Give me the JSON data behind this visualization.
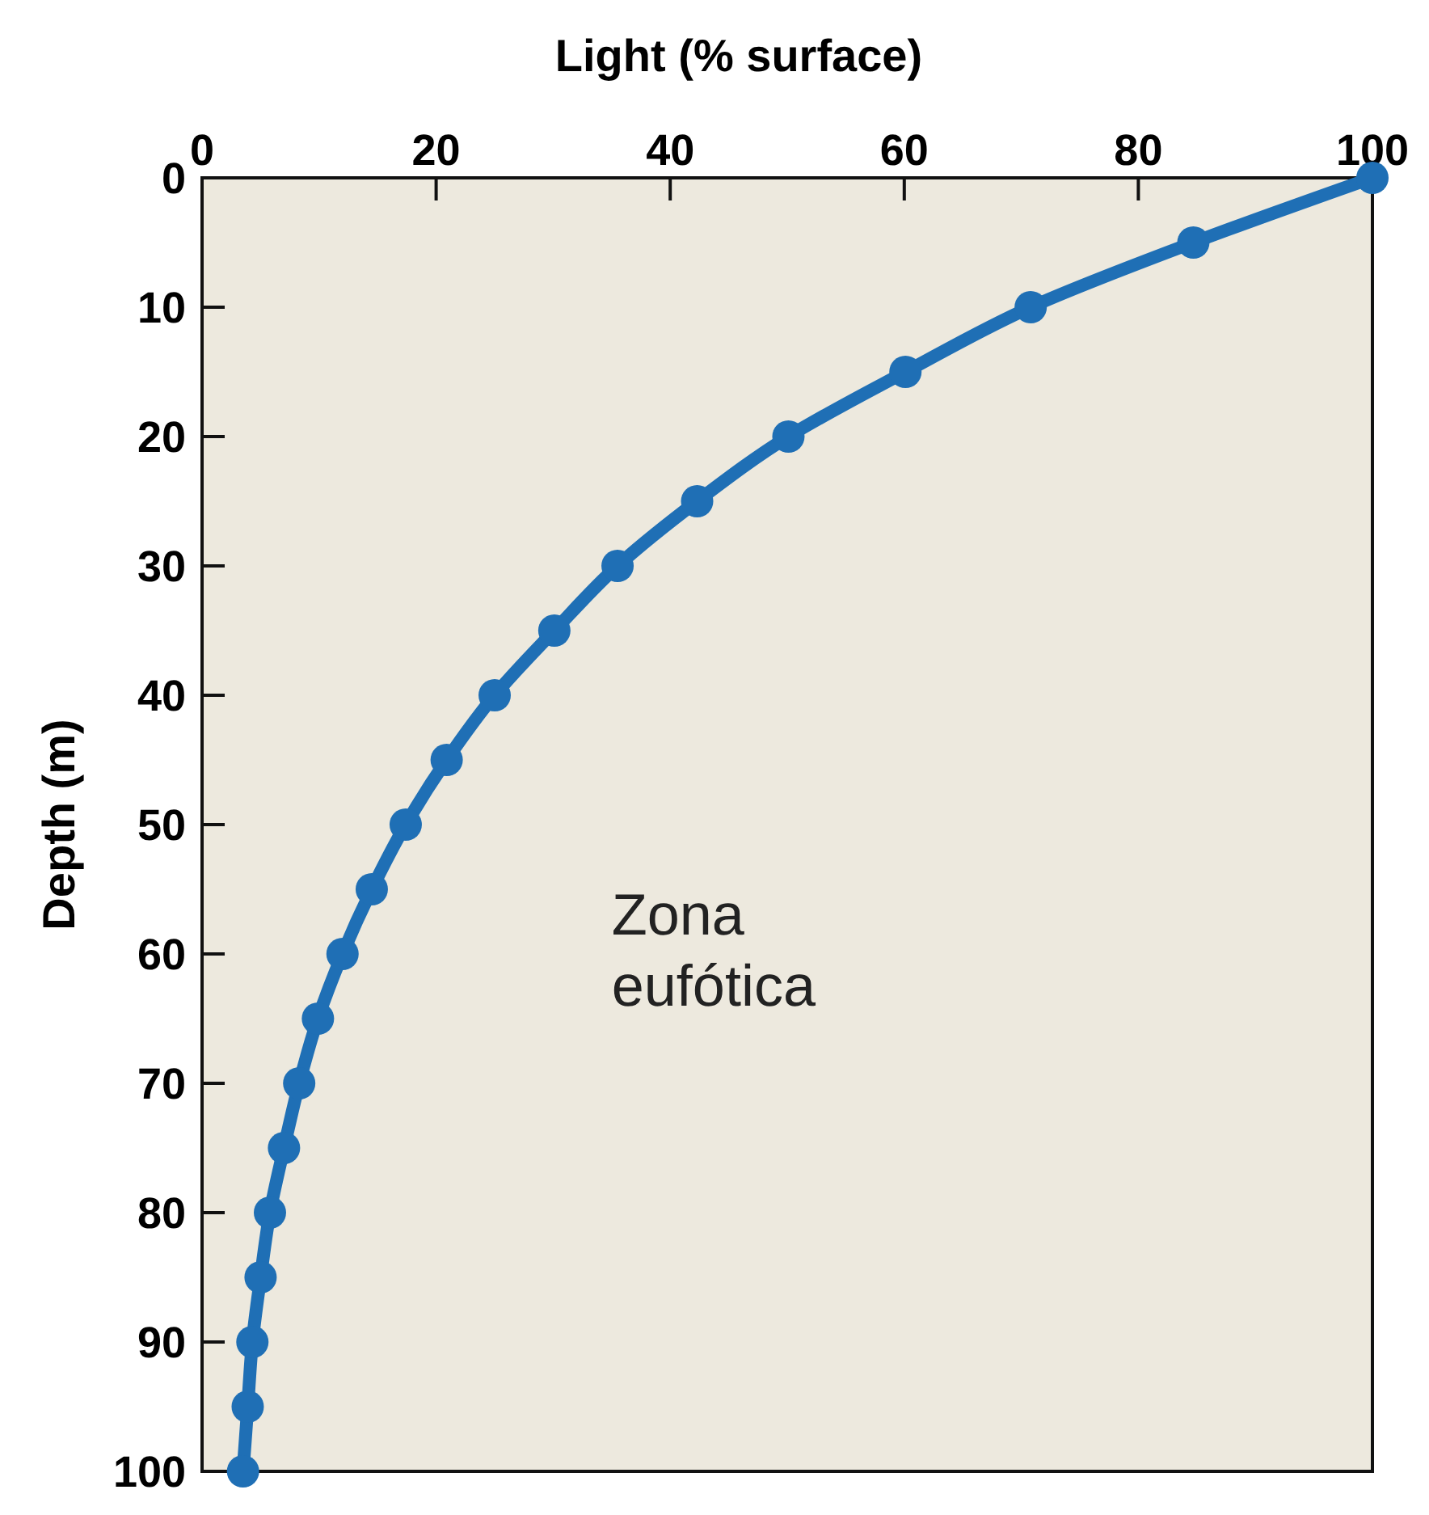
{
  "chart_data": {
    "type": "line",
    "xlabel": "Light (% surface)",
    "ylabel": "Depth (m)",
    "xlim": [
      0,
      100
    ],
    "xticks": [
      0,
      20,
      40,
      60,
      80,
      100
    ],
    "ylim": [
      100,
      0
    ],
    "yticks": [
      0,
      10,
      20,
      30,
      40,
      50,
      60,
      70,
      80,
      90,
      100
    ],
    "series": [
      {
        "color": "#1f6fb5",
        "x": [
          100,
          84.7,
          70.8,
          60.1,
          50.1,
          42.3,
          35.5,
          30.1,
          25.0,
          20.9,
          17.4,
          14.5,
          12.0,
          9.9,
          8.3,
          7.0,
          5.8,
          5.0,
          4.3,
          3.9,
          3.5
        ],
        "values": [
          0,
          5,
          10,
          15,
          20,
          25,
          30,
          35,
          40,
          45,
          50,
          55,
          60,
          65,
          70,
          75,
          80,
          85,
          90,
          95,
          100
        ]
      }
    ],
    "marker": "circle",
    "line_style": "solid",
    "grid": false,
    "annotations": [
      "Zona eufótica"
    ]
  }
}
